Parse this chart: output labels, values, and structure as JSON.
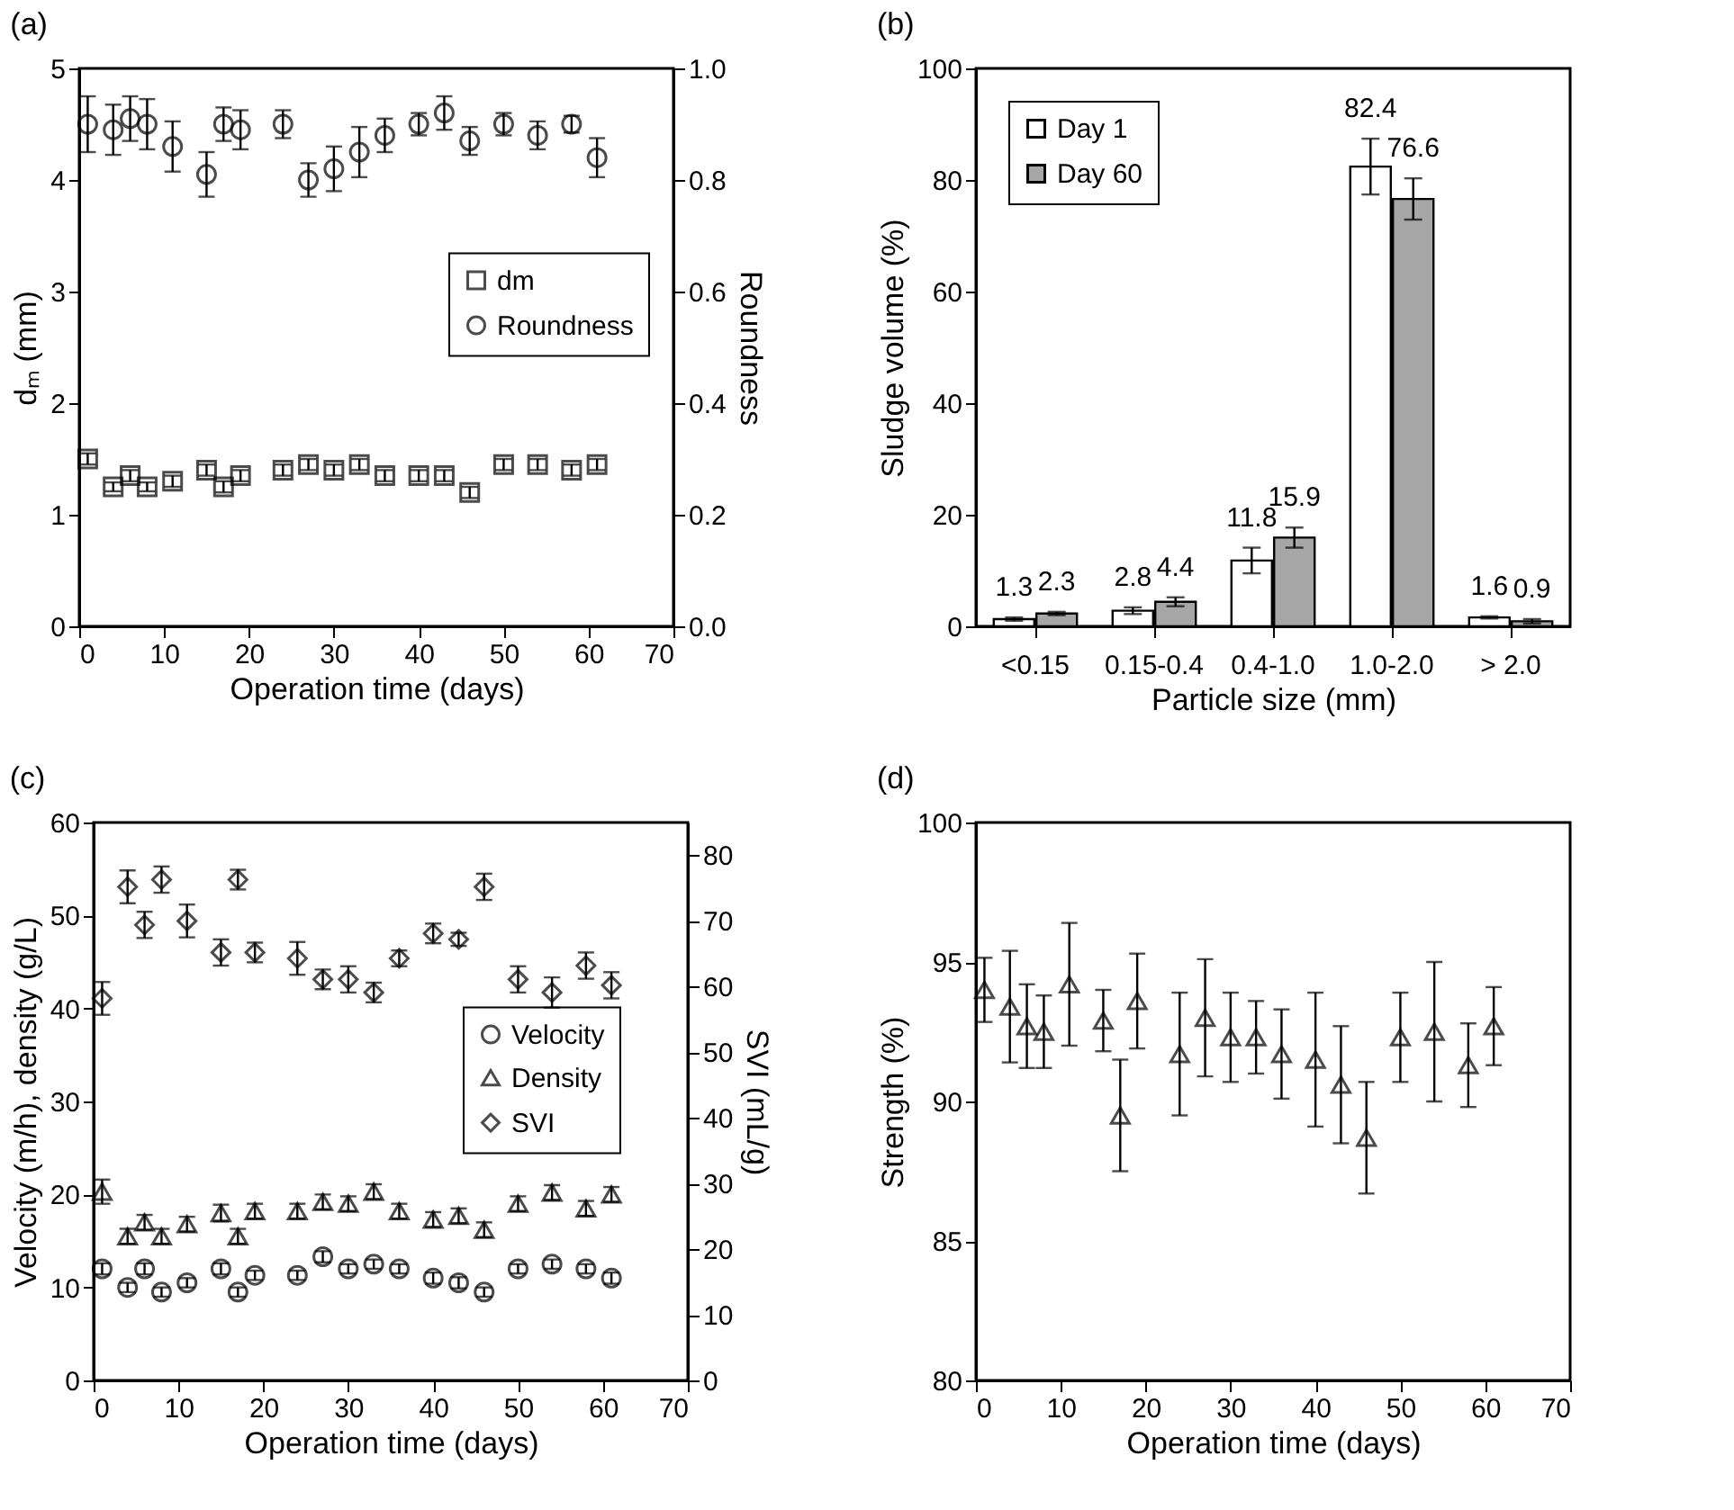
{
  "chart_data": [
    {
      "type": "scatter",
      "title": "(a)",
      "xlabel": "Operation time (days)",
      "ylabel": "dₘ (mm)",
      "y2label": "Roundness",
      "x": [
        1,
        4,
        6,
        8,
        11,
        15,
        17,
        19,
        24,
        27,
        30,
        33,
        36,
        40,
        43,
        46,
        50,
        54,
        58,
        61
      ],
      "xlim": [
        0,
        70
      ],
      "xticks": [
        0,
        10,
        20,
        30,
        40,
        50,
        60,
        70
      ],
      "ylim": [
        0,
        5
      ],
      "yticks": [
        0,
        1,
        2,
        3,
        4,
        5
      ],
      "y2lim": [
        0,
        1
      ],
      "y2ticks": [
        {
          "value": 0,
          "label": "0.0"
        },
        0.2,
        0.4,
        0.6,
        0.8,
        {
          "value": 1,
          "label": "1.0"
        }
      ],
      "legend": "right",
      "grid": false,
      "series": [
        {
          "name": "dm",
          "color": "#000000",
          "marker": "square",
          "values": [
            1.5,
            1.25,
            1.35,
            1.25,
            1.3,
            1.4,
            1.25,
            1.35,
            1.4,
            1.45,
            1.4,
            1.45,
            1.35,
            1.35,
            1.35,
            1.2,
            1.45,
            1.45,
            1.4,
            1.45
          ],
          "errors": [
            0.05,
            0.04,
            0.05,
            0.04,
            0.05,
            0.05,
            0.05,
            0.05,
            0.05,
            0.05,
            0.05,
            0.05,
            0.05,
            0.05,
            0.05,
            0.05,
            0.05,
            0.05,
            0.05,
            0.05
          ]
        },
        {
          "name": "Roundness",
          "color": "#000000",
          "marker": "circle",
          "axis": "y2",
          "values": [
            0.9,
            0.89,
            0.91,
            0.9,
            0.86,
            0.81,
            0.9,
            0.89,
            0.9,
            0.8,
            0.82,
            0.85,
            0.88,
            0.9,
            0.92,
            0.87,
            0.9,
            0.88,
            0.9,
            0.84
          ],
          "errors": [
            0.05,
            0.045,
            0.04,
            0.045,
            0.045,
            0.04,
            0.03,
            0.035,
            0.025,
            0.03,
            0.04,
            0.045,
            0.03,
            0.02,
            0.03,
            0.025,
            0.02,
            0.025,
            0.015,
            0.035
          ]
        }
      ]
    },
    {
      "type": "bar",
      "title": "(b)",
      "xlabel": "Particle size (mm)",
      "ylabel": "Sludge volume (%)",
      "categories": [
        "<0.15",
        "0.15-0.4",
        "0.4-1.0",
        "1.0-2.0",
        "> 2.0"
      ],
      "ylim": [
        0,
        100
      ],
      "yticks": [
        0,
        20,
        40,
        60,
        80,
        100
      ],
      "legend": "top left",
      "grid": false,
      "data_labels": true,
      "series": [
        {
          "name": "Day 1",
          "color": "#ffffff",
          "values": [
            1.3,
            2.8,
            11.8,
            82.4,
            1.6
          ],
          "errors": [
            0.3,
            0.6,
            2.3,
            5,
            0.2
          ]
        },
        {
          "name": "Day 60",
          "color": "#a6a6a6",
          "values": [
            2.3,
            4.4,
            15.9,
            76.6,
            0.9
          ],
          "errors": [
            0.3,
            0.8,
            1.8,
            3.7,
            0.4
          ]
        }
      ]
    },
    {
      "type": "scatter",
      "title": "(c)",
      "xlabel": "Operation time (days)",
      "ylabel": "Velocity (m/h),  density (g/L)",
      "y2label": "SVI (mL/g)",
      "x": [
        1,
        4,
        6,
        8,
        11,
        15,
        17,
        19,
        24,
        27,
        30,
        33,
        36,
        40,
        43,
        46,
        50,
        54,
        58,
        61
      ],
      "xlim": [
        0,
        70
      ],
      "xticks": [
        0,
        10,
        20,
        30,
        40,
        50,
        60,
        70
      ],
      "ylim": [
        0,
        60
      ],
      "yticks": [
        0,
        10,
        20,
        30,
        40,
        50,
        60
      ],
      "y2lim": [
        0,
        85
      ],
      "y2ticks": [
        0,
        10,
        20,
        30,
        40,
        50,
        60,
        70,
        80
      ],
      "legend": "right",
      "grid": false,
      "series": [
        {
          "name": "Velocity",
          "color": "#000000",
          "marker": "circle",
          "values": [
            12,
            10,
            12,
            9.5,
            10.5,
            12,
            9.5,
            11.3,
            11.3,
            13.3,
            12,
            12.5,
            12,
            11,
            10.5,
            9.5,
            12,
            12.5,
            12,
            11
          ],
          "errors": [
            0.6,
            0.5,
            0.6,
            0.5,
            0.5,
            0.6,
            0.5,
            0.5,
            0.5,
            0.6,
            0.5,
            0.5,
            0.5,
            0.6,
            0.6,
            0.5,
            0.5,
            0.5,
            0.5,
            0.6
          ]
        },
        {
          "name": "Density",
          "color": "#000000",
          "marker": "triangle",
          "values": [
            20.3,
            15.5,
            17,
            15.5,
            16.8,
            18,
            15.5,
            18.2,
            18.2,
            19.2,
            19,
            20.3,
            18.2,
            17.3,
            17.7,
            16.2,
            19,
            20.2,
            18.5,
            20
          ],
          "errors": [
            1.3,
            0.8,
            0.8,
            0.8,
            0.8,
            0.9,
            0.8,
            0.8,
            0.8,
            0.8,
            0.8,
            0.8,
            0.8,
            0.8,
            0.8,
            0.8,
            0.8,
            0.8,
            0.8,
            0.8
          ]
        },
        {
          "name": "SVI",
          "color": "#000000",
          "marker": "diamond",
          "axis": "y2",
          "values": [
            58.2,
            75.2,
            69.4,
            76.3,
            70,
            65.2,
            76.3,
            65.2,
            64.3,
            61.1,
            61.1,
            59.1,
            64.3,
            68.1,
            67.2,
            75.2,
            61.1,
            59.1,
            63.2,
            60.2
          ],
          "errors": [
            2.5,
            2.5,
            2,
            2,
            2.5,
            2,
            1.5,
            1.5,
            2.5,
            1.5,
            2,
            1.5,
            1.2,
            1.5,
            1,
            2,
            2,
            2.3,
            2,
            2
          ]
        }
      ]
    },
    {
      "type": "scatter",
      "title": "(d)",
      "xlabel": "Operation time (days)",
      "ylabel": "Strength (%)",
      "x": [
        1,
        4,
        6,
        8,
        11,
        15,
        17,
        19,
        24,
        27,
        30,
        33,
        36,
        40,
        43,
        46,
        50,
        54,
        58,
        61
      ],
      "xlim": [
        0,
        70
      ],
      "xticks": [
        0,
        10,
        20,
        30,
        40,
        50,
        60,
        70
      ],
      "ylim": [
        80,
        100
      ],
      "yticks": [
        80,
        85,
        90,
        95,
        100
      ],
      "grid": false,
      "series": [
        {
          "color": "#000000",
          "marker": "triangle",
          "values": [
            94,
            93.4,
            92.7,
            92.5,
            94.2,
            92.9,
            89.5,
            93.6,
            91.7,
            93,
            92.3,
            92.3,
            91.7,
            91.5,
            90.6,
            88.7,
            92.3,
            92.5,
            91.3,
            92.7
          ],
          "errors": [
            1.15,
            2,
            1.5,
            1.3,
            2.2,
            1.1,
            2,
            1.7,
            2.2,
            2.1,
            1.6,
            1.3,
            1.6,
            2.4,
            2.1,
            2,
            1.6,
            2.5,
            1.5,
            1.4
          ]
        }
      ]
    }
  ]
}
